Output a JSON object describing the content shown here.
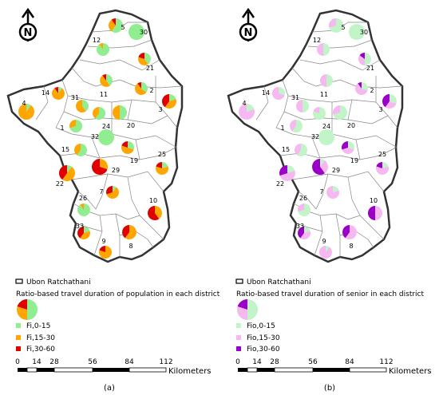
{
  "compass_letter": "N",
  "colors": {
    "a_low": "#90ee90",
    "a_mid": "#ffa500",
    "a_high": "#e00000",
    "b_low": "#c1f5c8",
    "b_mid": "#f6b8f0",
    "b_high": "#9a00c8",
    "boundary": "#606060"
  },
  "panels": [
    {
      "id": "a",
      "caption": "(a)",
      "legend": {
        "boundary_label": "Ubon Ratchathani",
        "title": "Ratio-based travel duration of population in each district",
        "items": [
          "Fi,0-15",
          "Fi,15-30",
          "Fi,30-60"
        ]
      },
      "scale": {
        "ticks": [
          "0",
          "14",
          "28",
          "56",
          "84",
          "112"
        ],
        "unit": "Kilometers"
      },
      "districts": [
        {
          "label": "5",
          "shares": [
            0.6,
            0.3,
            0.1
          ]
        },
        {
          "label": "30",
          "shares": [
            1.0,
            0.0,
            0.0
          ]
        },
        {
          "label": "12",
          "shares": [
            0.9,
            0.1,
            0.0
          ]
        },
        {
          "label": "21",
          "shares": [
            0.4,
            0.4,
            0.2
          ]
        },
        {
          "label": "14",
          "shares": [
            0.1,
            0.8,
            0.1
          ]
        },
        {
          "label": "4",
          "shares": [
            0.1,
            0.9,
            0.0
          ]
        },
        {
          "label": "31",
          "shares": [
            0.4,
            0.6,
            0.0
          ]
        },
        {
          "label": "11",
          "shares": [
            0.4,
            0.5,
            0.1
          ]
        },
        {
          "label": "2",
          "shares": [
            0.35,
            0.55,
            0.1
          ]
        },
        {
          "label": "3",
          "shares": [
            0.2,
            0.4,
            0.4
          ]
        },
        {
          "label": "1",
          "shares": [
            0.7,
            0.3,
            0.0
          ]
        },
        {
          "label": "24",
          "shares": [
            0.6,
            0.4,
            0.0
          ]
        },
        {
          "label": "20",
          "shares": [
            0.5,
            0.5,
            0.0
          ]
        },
        {
          "label": "32",
          "shares": [
            1.0,
            0.0,
            0.0
          ]
        },
        {
          "label": "15",
          "shares": [
            0.6,
            0.4,
            0.0
          ]
        },
        {
          "label": "19",
          "shares": [
            0.3,
            0.5,
            0.2
          ]
        },
        {
          "label": "25",
          "shares": [
            0.2,
            0.6,
            0.2
          ]
        },
        {
          "label": "22",
          "shares": [
            0.1,
            0.5,
            0.4
          ]
        },
        {
          "label": "29",
          "shares": [
            0.0,
            0.3,
            0.7
          ]
        },
        {
          "label": "7",
          "shares": [
            0.1,
            0.6,
            0.3
          ]
        },
        {
          "label": "26",
          "shares": [
            0.9,
            0.1,
            0.0
          ]
        },
        {
          "label": "10",
          "shares": [
            0.0,
            0.4,
            0.6
          ]
        },
        {
          "label": "33",
          "shares": [
            0.2,
            0.4,
            0.4
          ]
        },
        {
          "label": "9",
          "shares": [
            0.0,
            0.8,
            0.2
          ]
        },
        {
          "label": "8",
          "shares": [
            0.0,
            0.6,
            0.4
          ]
        }
      ]
    },
    {
      "id": "b",
      "caption": "(b)",
      "legend": {
        "boundary_label": "Ubon Ratchathani",
        "title": "Ratio-based travel duration of senior in each district",
        "items": [
          "Fio,0-15",
          "Fio,15-30",
          "Fio,30-60"
        ]
      },
      "scale": {
        "ticks": [
          "0",
          "14",
          "28",
          "56",
          "84",
          "112"
        ],
        "unit": "Kilometers"
      },
      "districts": [
        {
          "label": "5",
          "shares": [
            0.7,
            0.3,
            0.0
          ]
        },
        {
          "label": "30",
          "shares": [
            1.0,
            0.0,
            0.0
          ]
        },
        {
          "label": "12",
          "shares": [
            0.5,
            0.5,
            0.0
          ]
        },
        {
          "label": "21",
          "shares": [
            0.5,
            0.35,
            0.15
          ]
        },
        {
          "label": "14",
          "shares": [
            0.3,
            0.7,
            0.0
          ]
        },
        {
          "label": "4",
          "shares": [
            0.2,
            0.8,
            0.0
          ]
        },
        {
          "label": "31",
          "shares": [
            0.5,
            0.5,
            0.0
          ]
        },
        {
          "label": "11",
          "shares": [
            0.5,
            0.5,
            0.0
          ]
        },
        {
          "label": "2",
          "shares": [
            0.3,
            0.6,
            0.1
          ]
        },
        {
          "label": "3",
          "shares": [
            0.3,
            0.3,
            0.4
          ]
        },
        {
          "label": "1",
          "shares": [
            0.6,
            0.4,
            0.0
          ]
        },
        {
          "label": "24",
          "shares": [
            0.8,
            0.2,
            0.0
          ]
        },
        {
          "label": "20",
          "shares": [
            0.7,
            0.3,
            0.0
          ]
        },
        {
          "label": "32",
          "shares": [
            1.0,
            0.0,
            0.0
          ]
        },
        {
          "label": "15",
          "shares": [
            0.6,
            0.4,
            0.0
          ]
        },
        {
          "label": "19",
          "shares": [
            0.3,
            0.4,
            0.3
          ]
        },
        {
          "label": "25",
          "shares": [
            0.2,
            0.6,
            0.2
          ]
        },
        {
          "label": "22",
          "shares": [
            0.2,
            0.5,
            0.3
          ]
        },
        {
          "label": "29",
          "shares": [
            0.1,
            0.3,
            0.6
          ]
        },
        {
          "label": "7",
          "shares": [
            0.2,
            0.8,
            0.0
          ]
        },
        {
          "label": "26",
          "shares": [
            0.7,
            0.3,
            0.0
          ]
        },
        {
          "label": "10",
          "shares": [
            0.0,
            0.5,
            0.5
          ]
        },
        {
          "label": "33",
          "shares": [
            0.2,
            0.4,
            0.4
          ]
        },
        {
          "label": "9",
          "shares": [
            0.1,
            0.9,
            0.0
          ]
        },
        {
          "label": "8",
          "shares": [
            0.0,
            0.6,
            0.4
          ]
        }
      ]
    }
  ]
}
